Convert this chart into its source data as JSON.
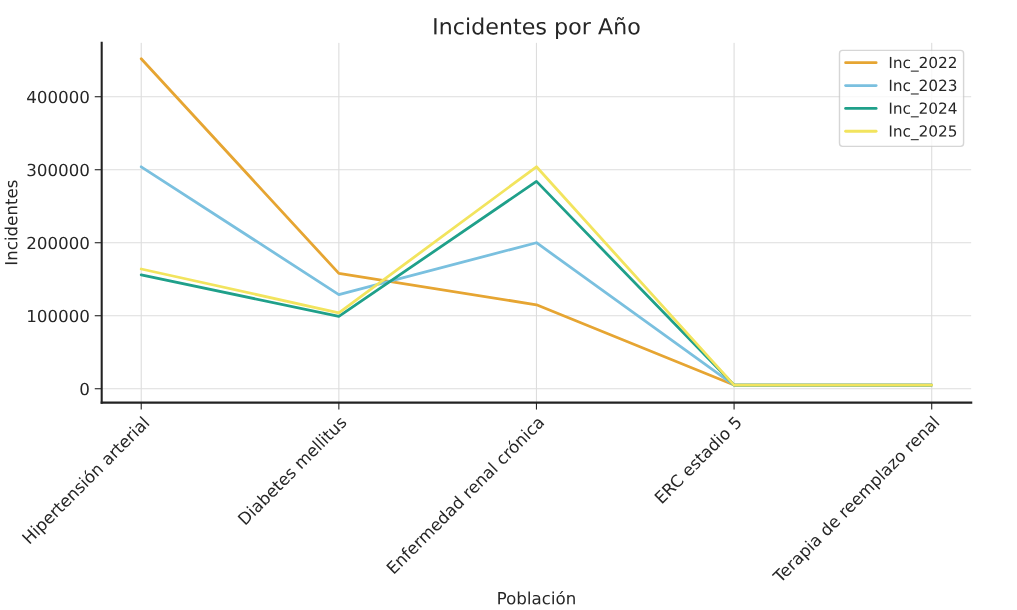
{
  "chart_data": {
    "type": "line",
    "title": "Incidentes por Año",
    "xlabel": "Población",
    "ylabel": "Incidentes",
    "categories": [
      "Hipertensión arterial",
      "Diabetes mellitus",
      "Enfermedad renal crónica",
      "ERC estadio 5",
      "Terapia de reemplazo renal"
    ],
    "series": [
      {
        "name": "Inc_2022",
        "color": "#e6a532",
        "values": [
          452000,
          158000,
          115000,
          5000,
          5000
        ]
      },
      {
        "name": "Inc_2023",
        "color": "#7ac0df",
        "values": [
          304000,
          129000,
          200000,
          5000,
          5000
        ]
      },
      {
        "name": "Inc_2024",
        "color": "#1fa08a",
        "values": [
          156000,
          99000,
          284000,
          5000,
          5000
        ]
      },
      {
        "name": "Inc_2025",
        "color": "#f2e45e",
        "values": [
          164000,
          104000,
          304000,
          5000,
          5000
        ]
      }
    ],
    "ylim": [
      -19000,
      474000
    ],
    "yticks": [
      0,
      100000,
      200000,
      300000,
      400000
    ],
    "grid": true,
    "legend": "top right",
    "marker": "none",
    "line_style": "solid"
  }
}
